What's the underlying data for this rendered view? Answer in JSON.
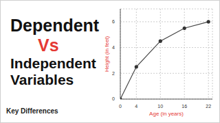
{
  "heading": [
    "Dependent",
    "Vs",
    "Independent",
    "Variables"
  ],
  "footer": "Key Differences",
  "chart_data": {
    "type": "line",
    "x_label": "Age (in years)",
    "y_label": "Height (in feet)",
    "x": [
      0,
      4,
      10,
      16,
      22
    ],
    "values": [
      0,
      2.5,
      4.5,
      5.5,
      6
    ],
    "color": "#444444",
    "marker": "circle",
    "xlim": [
      0,
      23
    ],
    "xticks": [
      0,
      4,
      10,
      16,
      22
    ],
    "ylim": [
      0,
      7
    ],
    "yticks": [
      0,
      2,
      4,
      6
    ],
    "grid": true
  }
}
